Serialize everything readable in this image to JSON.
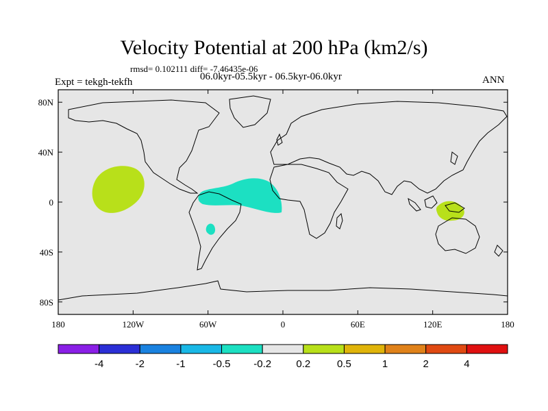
{
  "chart_data": {
    "type": "contour-map",
    "title": "Velocity Potential at 200 hPa (km2/s)",
    "stats_line": "rmsd= 0.102111 diff= -7.46435e-06",
    "experiment": "Expt = tekgh-tekfh",
    "periods": "06.0kyr-05.5kyr - 06.5kyr-06.0kyr",
    "season": "ANN",
    "x_axis": {
      "range": [
        -180,
        180
      ],
      "ticks": [
        -180,
        -120,
        -60,
        0,
        60,
        120,
        180
      ],
      "tick_labels": [
        "180",
        "120W",
        "60W",
        "0",
        "60E",
        "120E",
        "180"
      ]
    },
    "y_axis": {
      "range": [
        -90,
        90
      ],
      "ticks": [
        80,
        40,
        0,
        -40,
        -80
      ],
      "tick_labels": [
        "80N",
        "40N",
        "0",
        "40S",
        "80S"
      ]
    },
    "colorbar": {
      "labels": [
        "-4",
        "-2",
        "-1",
        "-0.5",
        "-0.2",
        "0.2",
        "0.5",
        "1",
        "2",
        "4"
      ],
      "colors": [
        "#8a1fe6",
        "#2b2fd6",
        "#1a82e0",
        "#19b8e6",
        "#1ce0c2",
        "#e6e6e6",
        "#b8e01a",
        "#e0b40a",
        "#e0821a",
        "#e04a12",
        "#e01010"
      ]
    },
    "anomalies": [
      {
        "region": "Eastern tropical Pacific",
        "category": "0.2 to 0.5",
        "color": "#b8e01a"
      },
      {
        "region": "Tropical Atlantic / northern South America",
        "category": "-0.5 to -0.2",
        "color": "#1ce0c2"
      },
      {
        "region": "Central South America",
        "category": "-0.5 to -0.2",
        "color": "#1ce0c2"
      },
      {
        "region": "Maritime Continent / New Guinea",
        "category": "0.2 to 0.5",
        "color": "#b8e01a"
      }
    ]
  }
}
